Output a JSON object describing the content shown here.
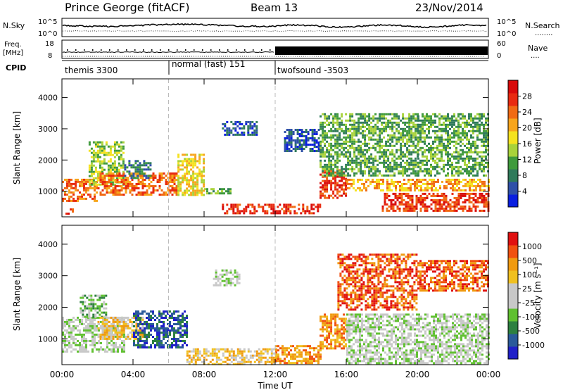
{
  "header": {
    "station": "Prince George (fitACF)",
    "beam": "Beam 13",
    "date": "23/Nov/2014"
  },
  "noise_panel": {
    "left_label": "N.Sky",
    "left_ticks": [
      "10^5",
      "10^0"
    ],
    "right_ticks": [
      "10^5",
      "10^0"
    ],
    "right_label": "N.Search",
    "right_dots": "........"
  },
  "freq_panel": {
    "left_label_1": "Freq.",
    "left_label_2": "[MHz]",
    "left_ticks": [
      "18",
      "8"
    ],
    "right_ticks": [
      "60",
      "0"
    ],
    "right_label": "Nave",
    "right_dots": "...."
  },
  "cpid_panel": {
    "label": "CPID",
    "modes": [
      {
        "name": "themis 3300",
        "start_h": 0
      },
      {
        "name": "normal (fast) 151",
        "start_h": 6
      },
      {
        "name": "twofsound -3503",
        "start_h": 12
      }
    ]
  },
  "chart_data": [
    {
      "type": "heatmap",
      "panel": "power",
      "ylabel": "Slant Range [km]",
      "xlim": [
        0,
        24
      ],
      "ylim": [
        180,
        4600
      ],
      "yticks": [
        "1000",
        "2000",
        "3000",
        "4000"
      ],
      "ytick_values": [
        1000,
        2000,
        3000,
        4000
      ],
      "colorbar": {
        "label": "Power [dB]",
        "ticks": [
          "4",
          "8",
          "12",
          "16",
          "20",
          "24",
          "28"
        ],
        "colors": [
          "#0a1fe0",
          "#2f50a8",
          "#2f7a5a",
          "#3f9a3c",
          "#a8d23a",
          "#f5e21f",
          "#f7a51c",
          "#f06a14",
          "#e82a10",
          "#d80a0a"
        ]
      },
      "echo_regions": [
        {
          "t0": 0.0,
          "t1": 2.0,
          "r0": 700,
          "r1": 1400,
          "level": 7
        },
        {
          "t0": 0.2,
          "t1": 0.6,
          "r0": 300,
          "r1": 450,
          "level": 8
        },
        {
          "t0": 1.5,
          "t1": 3.5,
          "r0": 1200,
          "r1": 2600,
          "level": 4
        },
        {
          "t0": 2.0,
          "t1": 6.5,
          "r0": 900,
          "r1": 1600,
          "level": 7
        },
        {
          "t0": 3.5,
          "t1": 5.0,
          "r0": 1400,
          "r1": 2000,
          "level": 2
        },
        {
          "t0": 6.5,
          "t1": 8.0,
          "r0": 900,
          "r1": 2200,
          "level": 5
        },
        {
          "t0": 8.0,
          "t1": 9.5,
          "r0": 900,
          "r1": 1100,
          "level": 3
        },
        {
          "t0": 9.0,
          "t1": 11.0,
          "r0": 2800,
          "r1": 3250,
          "level": 1
        },
        {
          "t0": 9.0,
          "t1": 14.5,
          "r0": 300,
          "r1": 600,
          "level": 8
        },
        {
          "t0": 12.5,
          "t1": 14.5,
          "r0": 2300,
          "r1": 3000,
          "level": 1
        },
        {
          "t0": 14.5,
          "t1": 16.0,
          "r0": 800,
          "r1": 1700,
          "level": 8
        },
        {
          "t0": 14.5,
          "t1": 20.0,
          "r0": 1500,
          "r1": 3500,
          "level": 3
        },
        {
          "t0": 16.0,
          "t1": 24.0,
          "r0": 1000,
          "r1": 1400,
          "level": 6
        },
        {
          "t0": 18.0,
          "t1": 24.0,
          "r0": 350,
          "r1": 950,
          "level": 8
        },
        {
          "t0": 20.0,
          "t1": 24.0,
          "r0": 1500,
          "r1": 3500,
          "level": 3
        }
      ]
    },
    {
      "type": "heatmap",
      "panel": "velocity",
      "ylabel": "Slant Range [km]",
      "xlabel": "Time UT",
      "xlim": [
        0,
        24
      ],
      "ylim": [
        180,
        4600
      ],
      "xticks": [
        "00:00",
        "04:00",
        "08:00",
        "12:00",
        "16:00",
        "20:00",
        "00:00"
      ],
      "xtick_values": [
        0,
        4,
        8,
        12,
        16,
        20,
        24
      ],
      "yticks": [
        "1000",
        "2000",
        "3000",
        "4000"
      ],
      "ytick_values": [
        1000,
        2000,
        3000,
        4000
      ],
      "colorbar": {
        "label": "Velocity [m s⁻¹]",
        "ticks": [
          "1000",
          "500",
          "100",
          "25",
          "-25",
          "-100",
          "-500",
          "-1000"
        ],
        "colors": [
          "#2020c8",
          "#2a5a9a",
          "#2d8040",
          "#60c030",
          "#c8c8c8",
          "#c8c8c8",
          "#f0c020",
          "#f09a10",
          "#f05010",
          "#e01010"
        ]
      },
      "echo_regions": [
        {
          "t0": 0.0,
          "t1": 3.5,
          "r0": 600,
          "r1": 1700,
          "level": 4
        },
        {
          "t0": 1.0,
          "t1": 2.5,
          "r0": 1700,
          "r1": 2400,
          "level": 3
        },
        {
          "t0": 2.0,
          "t1": 4.5,
          "r0": 1000,
          "r1": 1700,
          "level": 6
        },
        {
          "t0": 4.0,
          "t1": 7.0,
          "r0": 700,
          "r1": 1900,
          "level": 1
        },
        {
          "t0": 7.0,
          "t1": 12.0,
          "r0": 200,
          "r1": 700,
          "level": 6
        },
        {
          "t0": 8.5,
          "t1": 10.0,
          "r0": 2700,
          "r1": 3200,
          "level": 4
        },
        {
          "t0": 12.0,
          "t1": 14.5,
          "r0": 200,
          "r1": 800,
          "level": 7
        },
        {
          "t0": 14.5,
          "t1": 16.0,
          "r0": 700,
          "r1": 1800,
          "level": 7
        },
        {
          "t0": 15.5,
          "t1": 20.0,
          "r0": 1900,
          "r1": 3700,
          "level": 8
        },
        {
          "t0": 16.0,
          "t1": 24.0,
          "r0": 200,
          "r1": 1800,
          "level": 4
        },
        {
          "t0": 20.0,
          "t1": 24.0,
          "r0": 2500,
          "r1": 3500,
          "level": 8
        }
      ]
    }
  ]
}
